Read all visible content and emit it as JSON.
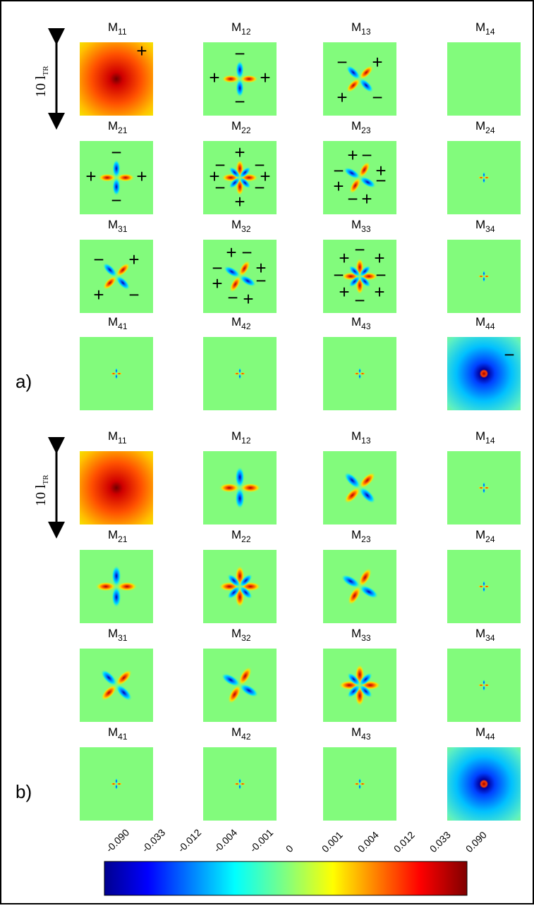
{
  "scale": {
    "text": "10 l",
    "sub": "TR"
  },
  "panels": [
    {
      "label": "a)",
      "cells": [
        {
          "symbol": "M",
          "sub": "11",
          "signs": [
            "+"
          ]
        },
        {
          "symbol": "M",
          "sub": "12",
          "signs": [
            "−",
            "+",
            "+",
            "−"
          ]
        },
        {
          "symbol": "M",
          "sub": "13",
          "signs": [
            "−",
            "+",
            "+",
            "−"
          ]
        },
        {
          "symbol": "M",
          "sub": "14",
          "signs": []
        },
        {
          "symbol": "M",
          "sub": "21",
          "signs": [
            "−",
            "+",
            "+",
            "−"
          ]
        },
        {
          "symbol": "M",
          "sub": "22",
          "signs": [
            "+",
            "−",
            "−",
            "+",
            "+",
            "−",
            "−",
            "+"
          ]
        },
        {
          "symbol": "M",
          "sub": "23",
          "signs": [
            "+",
            "−",
            "−",
            "+",
            "+",
            "−",
            "−",
            "+"
          ]
        },
        {
          "symbol": "M",
          "sub": "24",
          "signs": []
        },
        {
          "symbol": "M",
          "sub": "31",
          "signs": [
            "−",
            "+",
            "+",
            "−"
          ]
        },
        {
          "symbol": "M",
          "sub": "32",
          "signs": [
            "+",
            "−",
            "−",
            "+",
            "+",
            "−",
            "−",
            "+"
          ]
        },
        {
          "symbol": "M",
          "sub": "33",
          "signs": [
            "−",
            "+",
            "+",
            "−",
            "−",
            "+",
            "+",
            "−"
          ]
        },
        {
          "symbol": "M",
          "sub": "34",
          "signs": []
        },
        {
          "symbol": "M",
          "sub": "41",
          "signs": []
        },
        {
          "symbol": "M",
          "sub": "42",
          "signs": []
        },
        {
          "symbol": "M",
          "sub": "43",
          "signs": []
        },
        {
          "symbol": "M",
          "sub": "44",
          "signs": [
            "−"
          ]
        }
      ]
    },
    {
      "label": "b)",
      "cells": [
        {
          "symbol": "M",
          "sub": "11",
          "signs": []
        },
        {
          "symbol": "M",
          "sub": "12",
          "signs": []
        },
        {
          "symbol": "M",
          "sub": "13",
          "signs": []
        },
        {
          "symbol": "M",
          "sub": "14",
          "signs": []
        },
        {
          "symbol": "M",
          "sub": "21",
          "signs": []
        },
        {
          "symbol": "M",
          "sub": "22",
          "signs": []
        },
        {
          "symbol": "M",
          "sub": "23",
          "signs": []
        },
        {
          "symbol": "M",
          "sub": "24",
          "signs": []
        },
        {
          "symbol": "M",
          "sub": "31",
          "signs": []
        },
        {
          "symbol": "M",
          "sub": "32",
          "signs": []
        },
        {
          "symbol": "M",
          "sub": "33",
          "signs": []
        },
        {
          "symbol": "M",
          "sub": "34",
          "signs": []
        },
        {
          "symbol": "M",
          "sub": "41",
          "signs": []
        },
        {
          "symbol": "M",
          "sub": "42",
          "signs": []
        },
        {
          "symbol": "M",
          "sub": "43",
          "signs": []
        },
        {
          "symbol": "M",
          "sub": "44",
          "signs": []
        }
      ]
    }
  ],
  "colorbar": {
    "ticks": [
      "-0.090",
      "-0.033",
      "-0.012",
      "-0.004",
      "-0.001",
      "0",
      "0.001",
      "0.004",
      "0.012",
      "0.033",
      "0.090"
    ]
  }
}
